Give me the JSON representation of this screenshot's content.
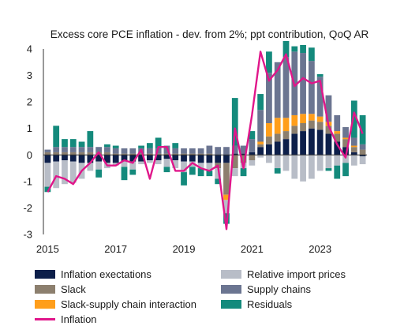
{
  "chart_data": {
    "type": "bar",
    "title": "Excess core PCE inflation - dev. from 2%; ppt contribution, QoQ AR",
    "xlabel": "",
    "ylabel": "",
    "ylim": [
      -3,
      4
    ],
    "yticks": [
      4,
      3,
      2,
      1,
      0,
      -1,
      -2,
      -3
    ],
    "xticks": [
      {
        "label": "2015",
        "period": "2015Q1"
      },
      {
        "label": "2017",
        "period": "2017Q1"
      },
      {
        "label": "2019",
        "period": "2019Q1"
      },
      {
        "label": "2021",
        "period": "2021Q1"
      },
      {
        "label": "2023",
        "period": "2023Q1"
      }
    ],
    "categories": [
      "2015Q1",
      "2015Q2",
      "2015Q3",
      "2015Q4",
      "2016Q1",
      "2016Q2",
      "2016Q3",
      "2016Q4",
      "2017Q1",
      "2017Q2",
      "2017Q3",
      "2017Q4",
      "2018Q1",
      "2018Q2",
      "2018Q3",
      "2018Q4",
      "2019Q1",
      "2019Q2",
      "2019Q3",
      "2019Q4",
      "2020Q1",
      "2020Q2",
      "2020Q3",
      "2020Q4",
      "2021Q1",
      "2021Q2",
      "2021Q3",
      "2021Q4",
      "2022Q1",
      "2022Q2",
      "2022Q3",
      "2022Q4",
      "2023Q1",
      "2023Q2",
      "2023Q3",
      "2023Q4",
      "2024Q1",
      "2024Q2"
    ],
    "stack_order": [
      "Inflation exectations",
      "Slack",
      "Slack-supply chain interaction",
      "Relative import prices",
      "Supply chains",
      "Residuals"
    ],
    "series": [
      {
        "name": "Inflation exectations",
        "color": "#0d1f4a",
        "values": [
          -0.3,
          -0.25,
          -0.2,
          -0.25,
          -0.3,
          -0.3,
          -0.25,
          -0.3,
          -0.3,
          -0.25,
          -0.25,
          -0.25,
          -0.2,
          -0.2,
          -0.15,
          -0.2,
          -0.25,
          -0.25,
          -0.3,
          -0.3,
          -0.3,
          -0.3,
          0.05,
          0.05,
          0.1,
          0.3,
          0.4,
          0.5,
          0.6,
          0.8,
          0.9,
          1.0,
          0.95,
          0.8,
          0.5,
          0.3,
          0.1,
          -0.05
        ]
      },
      {
        "name": "Slack",
        "color": "#8c7f6e",
        "values": [
          0.1,
          0.1,
          0.1,
          0.1,
          0.1,
          0.1,
          0.1,
          0.1,
          0.05,
          0.05,
          0.05,
          0.05,
          0.05,
          0.05,
          0.05,
          0.05,
          0.05,
          0.05,
          0.05,
          0.05,
          -0.2,
          -1.2,
          -0.5,
          -0.3,
          -0.2,
          0.1,
          0.3,
          0.3,
          0.3,
          0.3,
          0.3,
          0.3,
          0.3,
          0.3,
          0.3,
          0.3,
          0.2,
          0.2
        ]
      },
      {
        "name": "Slack-supply chain interaction",
        "color": "#ff9e1b",
        "values": [
          0,
          0,
          0,
          0,
          0,
          0,
          0,
          0,
          0,
          0,
          0,
          0,
          0,
          0,
          0,
          0,
          0,
          0,
          0,
          0,
          0,
          -0.2,
          0,
          0,
          0,
          0.1,
          0.5,
          0.6,
          0.5,
          0.4,
          0.35,
          0.25,
          0.2,
          0.15,
          0.1,
          0.05,
          0.05,
          0
        ]
      },
      {
        "name": "Relative import prices",
        "color": "#b8bdc7",
        "values": [
          -0.9,
          -1.0,
          -0.9,
          -0.8,
          -0.6,
          -0.3,
          -0.3,
          -0.2,
          -0.1,
          -0.2,
          -0.3,
          -0.1,
          -0.1,
          -0.15,
          -0.3,
          -0.3,
          -0.4,
          -0.2,
          -0.2,
          -0.3,
          -0.4,
          -0.5,
          -0.3,
          -0.2,
          -0.2,
          -0.1,
          -0.3,
          -0.5,
          -0.6,
          -0.9,
          -1.0,
          -0.9,
          -0.6,
          -0.5,
          -0.4,
          -0.3,
          -0.4,
          -0.3
        ]
      },
      {
        "name": "Supply chains",
        "color": "#6b7591",
        "values": [
          0.1,
          0.2,
          0.2,
          0.2,
          0.2,
          0.2,
          0.2,
          0.2,
          0.2,
          0.2,
          0.2,
          0.2,
          0.2,
          0.2,
          0.3,
          0.2,
          0.2,
          0.2,
          0.2,
          0.3,
          0.3,
          0.3,
          0.3,
          0.3,
          0.5,
          1.2,
          1.9,
          2.1,
          2.3,
          2.4,
          2.3,
          2.0,
          1.5,
          1.0,
          0.6,
          0.4,
          0.3,
          0.2
        ]
      },
      {
        "name": "Residuals",
        "color": "#148a7c",
        "values": [
          -0.2,
          0.8,
          0.3,
          0.3,
          0.2,
          0.6,
          -0.3,
          0.1,
          0.1,
          -0.5,
          -0.2,
          0.1,
          0.2,
          0.4,
          -0.2,
          0.2,
          -0.5,
          -0.3,
          -0.3,
          -0.2,
          -0.2,
          -0.4,
          1.8,
          -0.3,
          0.3,
          0.6,
          0.8,
          -0.2,
          0.6,
          0.2,
          0.3,
          0.5,
          0.1,
          -0.1,
          -0.5,
          -0.5,
          1.4,
          1.1
        ]
      },
      {
        "name": "Inflation",
        "type": "line",
        "color": "#e0168a",
        "values": [
          -1.4,
          -0.8,
          -0.9,
          -1.1,
          -0.6,
          -0.3,
          0.1,
          -0.4,
          -0.4,
          -0.2,
          -0.3,
          0.2,
          -0.9,
          0.3,
          0.3,
          -0.6,
          -0.6,
          -0.3,
          -0.5,
          -0.6,
          -0.4,
          -2.8,
          1.0,
          -0.5,
          1.5,
          3.9,
          2.8,
          3.2,
          3.8,
          2.6,
          2.9,
          2.7,
          2.8,
          1.1,
          0.4,
          -0.1,
          1.6,
          0.8
        ]
      }
    ]
  }
}
